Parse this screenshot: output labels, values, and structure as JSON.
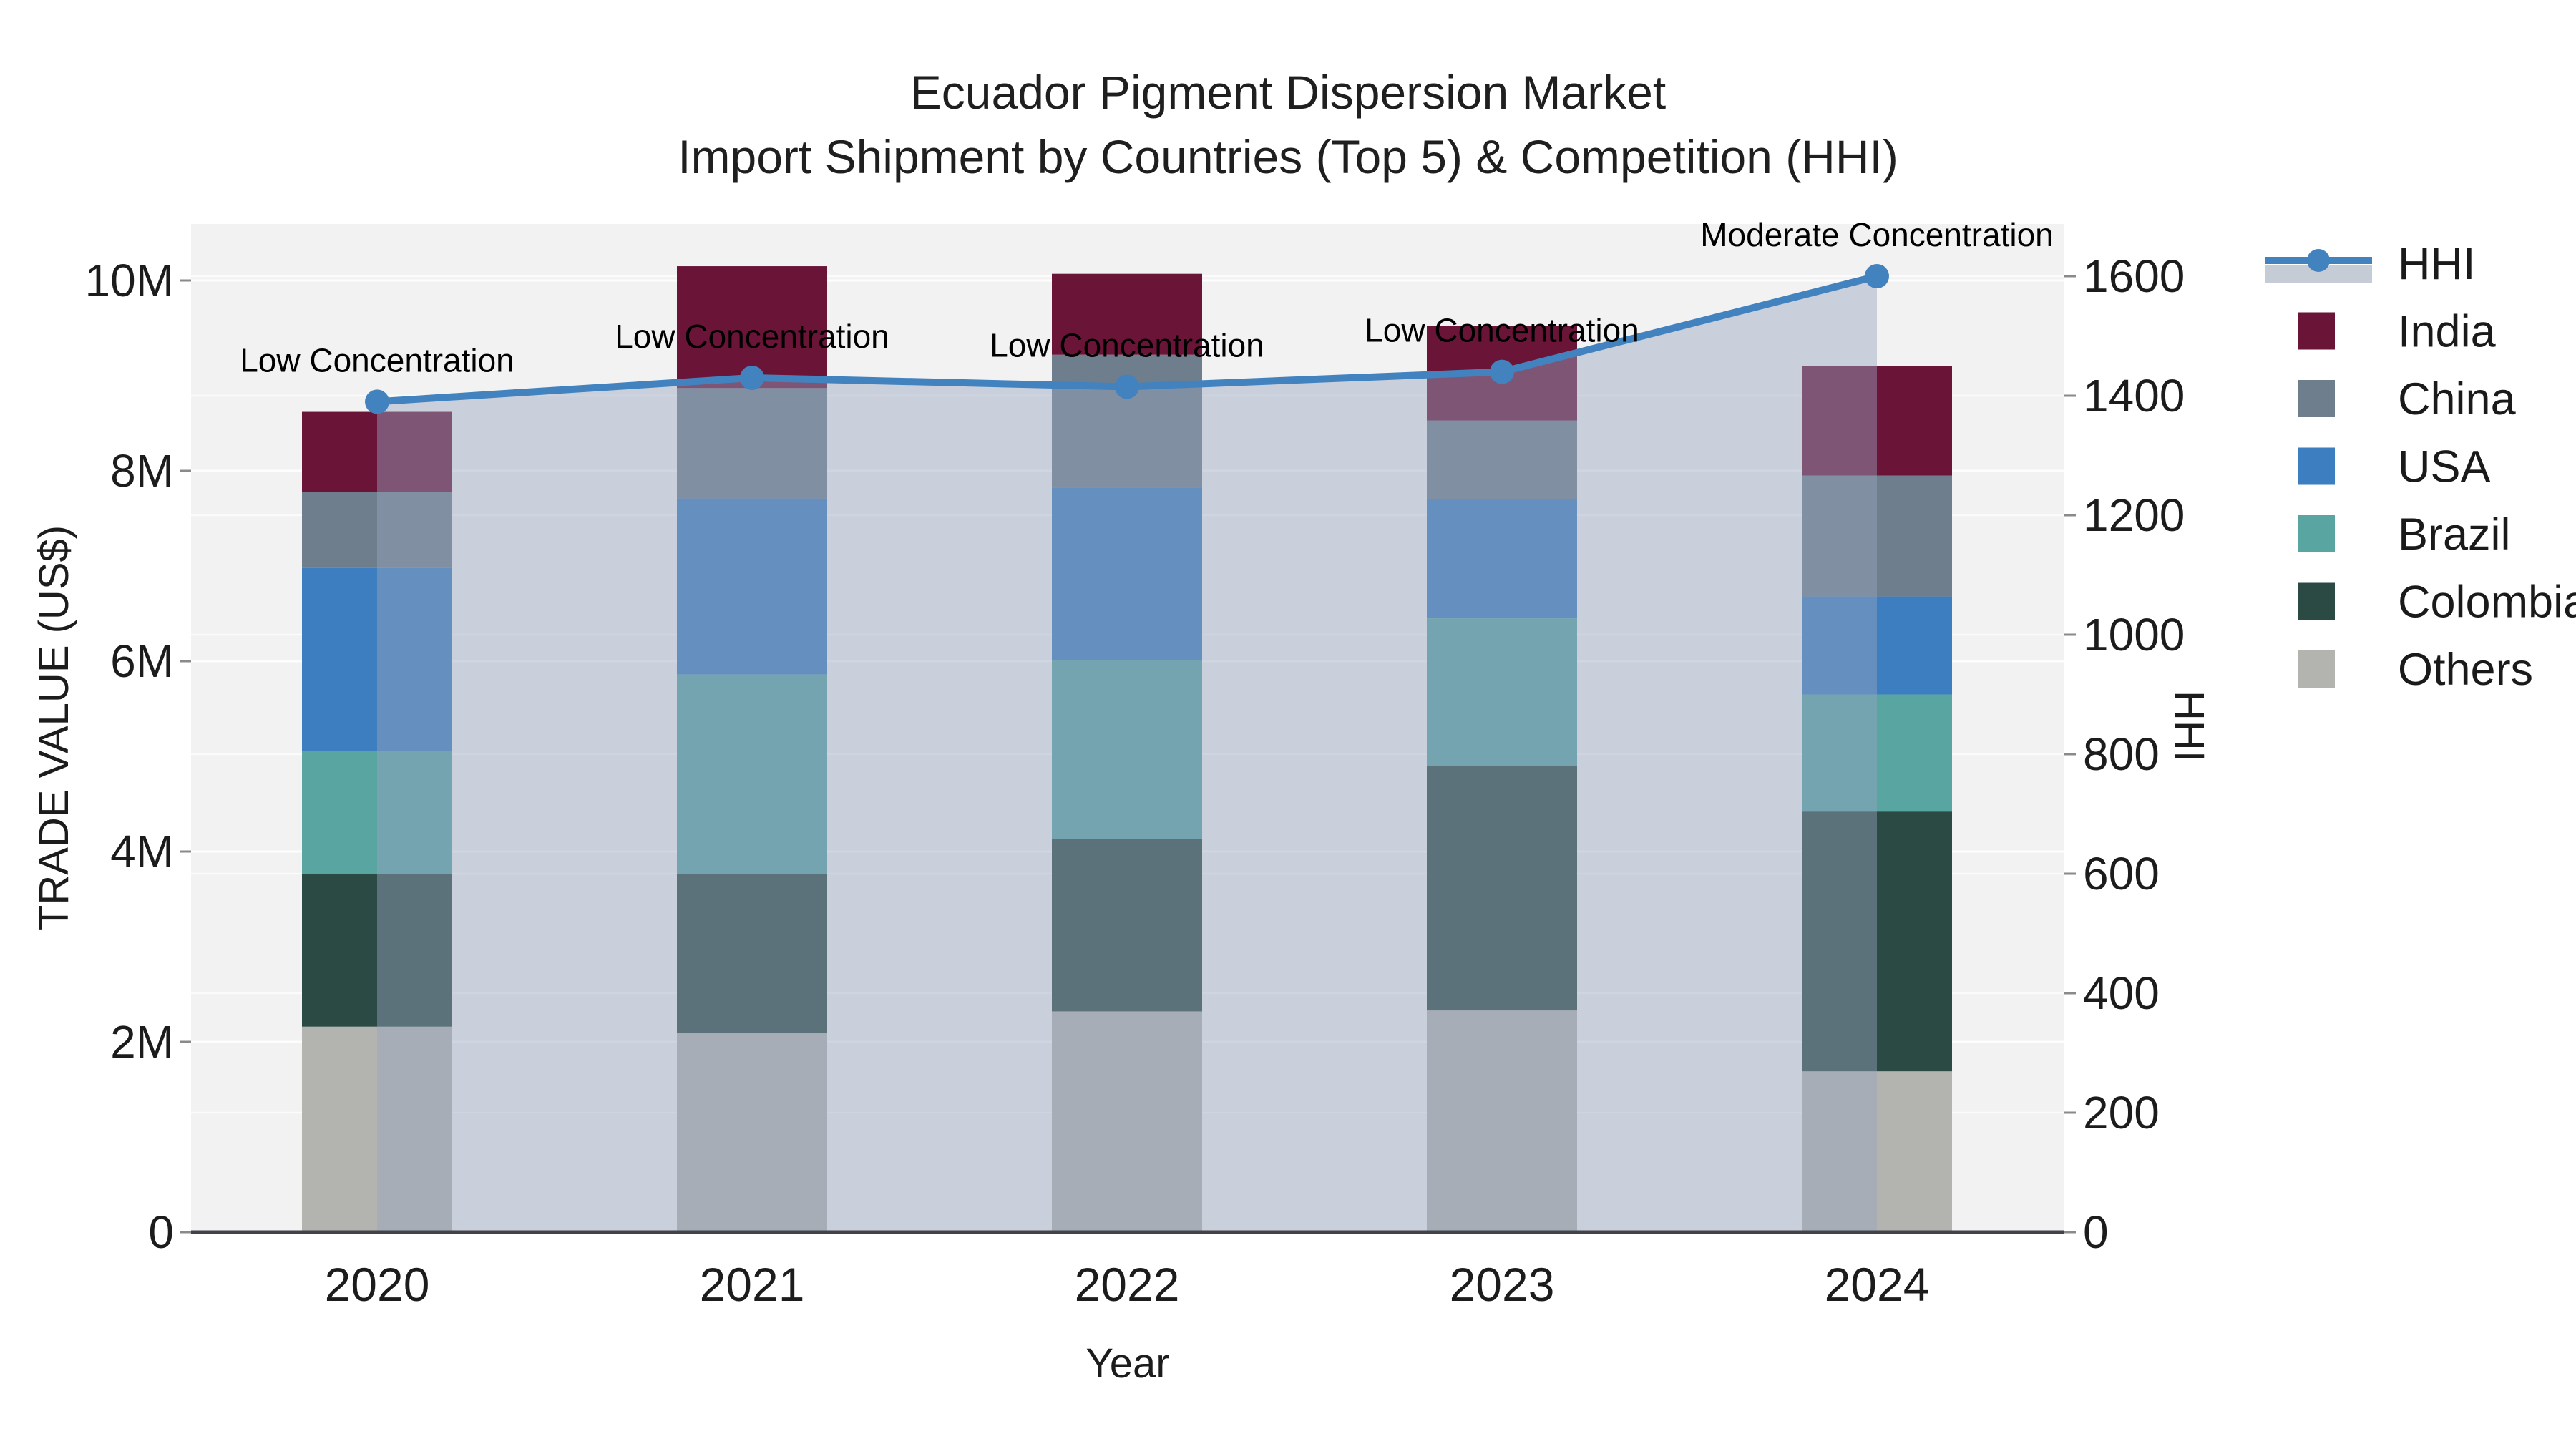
{
  "title": {
    "line1": "Ecuador Pigment Dispersion Market",
    "line2": "Import Shipment by Countries (Top 5) & Competition (HHI)"
  },
  "chart_data": {
    "type": "bar+line",
    "categories": [
      "2020",
      "2021",
      "2022",
      "2023",
      "2024"
    ],
    "stack_order_bottom_to_top": [
      "Others",
      "Colombia",
      "Brazil",
      "USA",
      "China",
      "India"
    ],
    "series": [
      {
        "name": "India",
        "type": "bar",
        "color": "#6a1537",
        "values": [
          840000,
          1280000,
          850000,
          990000,
          1150000
        ]
      },
      {
        "name": "China",
        "type": "bar",
        "color": "#6f7e8d",
        "values": [
          800000,
          1160000,
          1400000,
          830000,
          1270000
        ]
      },
      {
        "name": "USA",
        "type": "bar",
        "color": "#3d7ec0",
        "values": [
          1920000,
          1850000,
          1810000,
          1250000,
          1030000
        ]
      },
      {
        "name": "Brazil",
        "type": "bar",
        "color": "#58a5a2",
        "values": [
          1300000,
          2100000,
          1880000,
          1550000,
          1230000
        ]
      },
      {
        "name": "Colombia",
        "type": "bar",
        "color": "#2b4a44",
        "values": [
          1600000,
          1670000,
          1810000,
          2570000,
          2730000
        ]
      },
      {
        "name": "Others",
        "type": "bar",
        "color": "#b3b4af",
        "values": [
          2160000,
          2090000,
          2320000,
          2330000,
          1690000
        ]
      }
    ],
    "hhi": {
      "name": "HHI",
      "type": "line+area",
      "color": "#4283bf",
      "area_color": "rgba(150,165,190,0.45)",
      "legend_band_color": "#c5ccd6",
      "values": [
        1390,
        1430,
        1415,
        1440,
        1600
      ]
    },
    "annotations": [
      {
        "category": "2020",
        "text": "Low Concentration"
      },
      {
        "category": "2021",
        "text": "Low Concentration"
      },
      {
        "category": "2022",
        "text": "Low Concentration"
      },
      {
        "category": "2023",
        "text": "Low Concentration"
      },
      {
        "category": "2024",
        "text": "Moderate Concentration"
      }
    ],
    "y_left": {
      "title": "TRADE VALUE (US$)",
      "ticks": [
        "0",
        "2M",
        "4M",
        "6M",
        "8M",
        "10M"
      ],
      "tick_values": [
        0,
        2000000,
        4000000,
        6000000,
        8000000,
        10000000
      ],
      "ylim": [
        0,
        10590000
      ]
    },
    "y_right": {
      "title": "HHI",
      "ticks": [
        "0",
        "200",
        "400",
        "600",
        "800",
        "1000",
        "1200",
        "1400",
        "1600"
      ],
      "tick_values": [
        0,
        200,
        400,
        600,
        800,
        1000,
        1200,
        1400,
        1600
      ],
      "ylim": [
        0,
        1685
      ]
    },
    "x_axis": {
      "title": "Year"
    },
    "legend": [
      "HHI",
      "India",
      "China",
      "USA",
      "Brazil",
      "Colombia",
      "Others"
    ],
    "grid": true,
    "legend_position": "right"
  },
  "colors": {
    "plot_background": "#f2f2f2",
    "page_background": "#ffffff",
    "gridline": "#ffffff",
    "axis_line": "#42424a",
    "tick_mark": "#8a8a8a"
  }
}
